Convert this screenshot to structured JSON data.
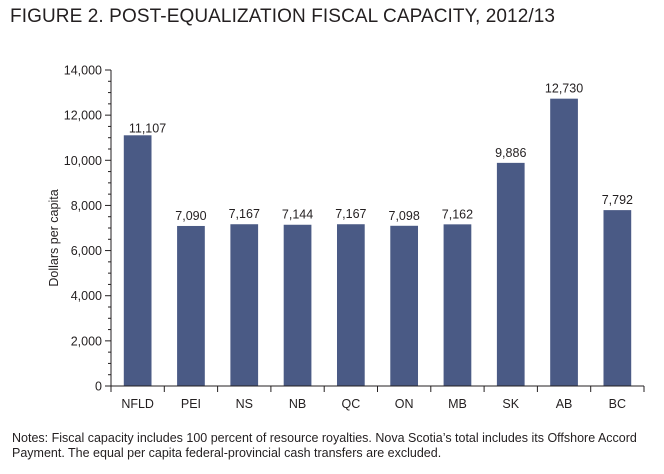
{
  "title": "FIGURE 2. POST-EQUALIZATION FISCAL CAPACITY, 2012/13",
  "notes": "Notes: Fiscal capacity includes 100 percent of resource royalties. Nova Scotia’s total includes its Offshore Accord Payment. The equal per capita federal-provincial cash transfers are excluded.",
  "colors": {
    "bar": "#4a5a85",
    "axis": "#231f20"
  },
  "chart_data": {
    "type": "bar",
    "title": "FIGURE 2. POST-EQUALIZATION FISCAL CAPACITY, 2012/13",
    "xlabel": "",
    "ylabel": "Dollars per capita",
    "ylim": [
      0,
      14000
    ],
    "yticks": [
      0,
      2000,
      4000,
      6000,
      8000,
      10000,
      12000,
      14000
    ],
    "ytick_labels": [
      "0",
      "2,000",
      "4,000",
      "6,000",
      "8,000",
      "10,000",
      "12,000",
      "14,000"
    ],
    "grid": false,
    "categories": [
      "NFLD",
      "PEI",
      "NS",
      "NB",
      "QC",
      "ON",
      "MB",
      "SK",
      "AB",
      "BC"
    ],
    "values": [
      11107,
      7090,
      7167,
      7144,
      7167,
      7098,
      7162,
      9886,
      12730,
      7792
    ],
    "value_labels": [
      "11,107",
      "7,090",
      "7,167",
      "7,144",
      "7,167",
      "7,098",
      "7,162",
      "9,886",
      "12,730",
      "7,792"
    ]
  }
}
